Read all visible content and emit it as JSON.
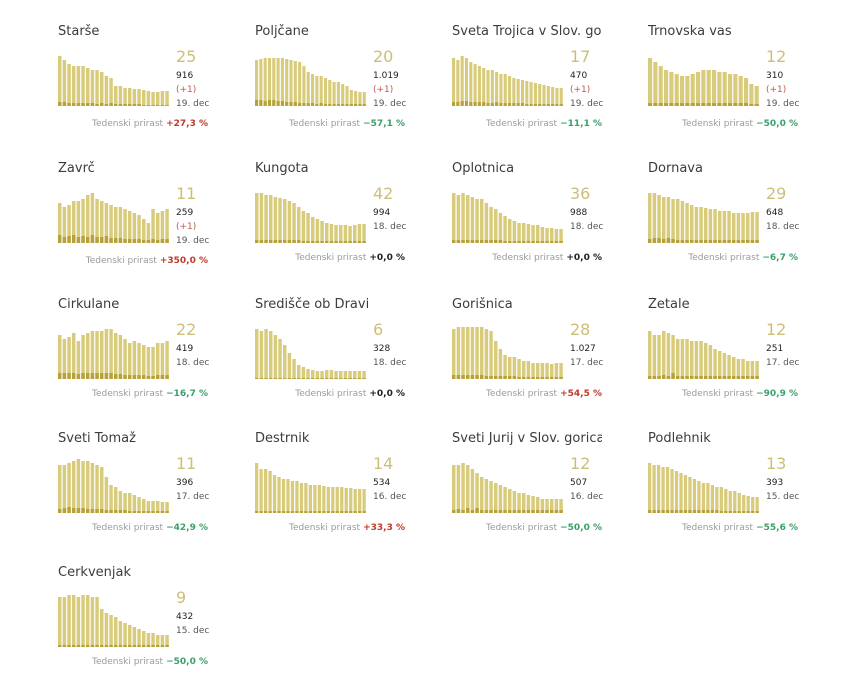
{
  "colors": {
    "bar": "#d8cc7c",
    "bar_dark": "#b6a13a",
    "number": "#cdbf77",
    "positive": "#c0392b",
    "negative": "#3aa06a"
  },
  "weekly_label": "Tedenski prirast",
  "chart_data": [
    {
      "type": "bar",
      "title": "Starše",
      "current": "25",
      "total": "916",
      "delta": "(+1)",
      "date": "19. dec",
      "weekly": "+27,3 %",
      "trend": "pos",
      "values": [
        50,
        46,
        42,
        40,
        40,
        40,
        38,
        36,
        36,
        34,
        30,
        28,
        20,
        20,
        18,
        18,
        17,
        17,
        16,
        15,
        14,
        14,
        15,
        15
      ],
      "highlight": [
        4,
        4,
        3,
        3,
        3,
        3,
        3,
        3,
        2,
        3,
        2,
        3,
        2,
        2,
        2,
        2,
        2,
        2,
        1,
        1,
        1,
        1,
        1,
        1
      ]
    },
    {
      "type": "bar",
      "title": "Poljčane",
      "current": "20",
      "total": "1.019",
      "delta": "(+1)",
      "date": "19. dec",
      "weekly": "−57,1 %",
      "trend": "neg",
      "values": [
        46,
        47,
        48,
        48,
        48,
        48,
        48,
        47,
        46,
        45,
        44,
        40,
        34,
        32,
        30,
        30,
        28,
        26,
        24,
        24,
        22,
        20,
        16,
        15,
        14,
        14
      ],
      "highlight": [
        6,
        6,
        5,
        6,
        6,
        5,
        5,
        4,
        4,
        4,
        3,
        3,
        3,
        3,
        2,
        3,
        2,
        2,
        2,
        2,
        2,
        2,
        2,
        2,
        2,
        2
      ]
    },
    {
      "type": "bar",
      "title": "Sveta Trojica v Slov. goricah",
      "current": "17",
      "total": "470",
      "delta": "(+1)",
      "date": "19. dec",
      "weekly": "−11,1 %",
      "trend": "neg",
      "values": [
        48,
        46,
        50,
        48,
        44,
        42,
        40,
        38,
        36,
        36,
        34,
        32,
        32,
        30,
        28,
        27,
        26,
        25,
        24,
        23,
        22,
        21,
        20,
        19,
        18,
        18
      ],
      "highlight": [
        4,
        4,
        5,
        5,
        4,
        4,
        4,
        4,
        3,
        3,
        4,
        3,
        3,
        3,
        3,
        3,
        3,
        2,
        2,
        2,
        2,
        2,
        2,
        2,
        2,
        2
      ]
    },
    {
      "type": "bar",
      "title": "Trnovska vas",
      "current": "12",
      "total": "310",
      "delta": "(+1)",
      "date": "19. dec",
      "weekly": "−50,0 %",
      "trend": "neg",
      "values": [
        48,
        44,
        40,
        36,
        34,
        32,
        30,
        30,
        32,
        34,
        36,
        36,
        36,
        34,
        34,
        32,
        32,
        30,
        28,
        22,
        20
      ],
      "highlight": [
        3,
        3,
        3,
        3,
        3,
        3,
        3,
        3,
        3,
        3,
        3,
        3,
        3,
        3,
        3,
        3,
        3,
        3,
        3,
        2,
        2
      ]
    },
    {
      "type": "bar",
      "title": "Zavrč",
      "current": "11",
      "total": "259",
      "delta": "(+1)",
      "date": "19. dec",
      "weekly": "+350,0 %",
      "trend": "pos",
      "values": [
        40,
        36,
        38,
        42,
        42,
        44,
        48,
        50,
        44,
        42,
        40,
        38,
        36,
        36,
        34,
        32,
        30,
        28,
        24,
        20,
        34,
        30,
        32,
        34
      ],
      "highlight": [
        8,
        6,
        7,
        8,
        6,
        7,
        6,
        8,
        6,
        6,
        7,
        5,
        5,
        5,
        4,
        4,
        4,
        4,
        3,
        3,
        4,
        3,
        4,
        4
      ]
    },
    {
      "type": "bar",
      "title": "Kungota",
      "current": "42",
      "total": "994",
      "delta": "",
      "date": "18. dec",
      "weekly": "+0,0 %",
      "trend": "zero",
      "values": [
        50,
        50,
        48,
        48,
        46,
        45,
        44,
        42,
        40,
        36,
        32,
        30,
        26,
        24,
        22,
        20,
        19,
        18,
        18,
        18,
        17,
        18,
        19,
        19
      ],
      "highlight": [
        3,
        3,
        3,
        3,
        3,
        3,
        3,
        3,
        3,
        3,
        2,
        2,
        2,
        2,
        2,
        2,
        2,
        2,
        2,
        2,
        2,
        2,
        2,
        2
      ]
    },
    {
      "type": "bar",
      "title": "Oplotnica",
      "current": "36",
      "total": "988",
      "delta": "",
      "date": "18. dec",
      "weekly": "+0,0 %",
      "trend": "zero",
      "values": [
        50,
        48,
        50,
        48,
        46,
        44,
        44,
        40,
        36,
        34,
        30,
        27,
        24,
        22,
        20,
        20,
        19,
        18,
        18,
        16,
        15,
        15,
        14,
        14
      ],
      "highlight": [
        3,
        3,
        3,
        3,
        3,
        3,
        3,
        3,
        3,
        3,
        3,
        2,
        2,
        2,
        2,
        2,
        2,
        2,
        2,
        2,
        2,
        2,
        2,
        2
      ]
    },
    {
      "type": "bar",
      "title": "Dornava",
      "current": "29",
      "total": "648",
      "delta": "",
      "date": "18. dec",
      "weekly": "−6,7 %",
      "trend": "neg",
      "values": [
        50,
        50,
        48,
        46,
        46,
        44,
        44,
        42,
        40,
        38,
        36,
        36,
        35,
        34,
        34,
        32,
        32,
        32,
        30,
        30,
        30,
        30,
        31,
        31
      ],
      "highlight": [
        4,
        5,
        5,
        4,
        5,
        4,
        3,
        3,
        3,
        3,
        3,
        3,
        3,
        3,
        3,
        3,
        3,
        3,
        3,
        3,
        3,
        3,
        3,
        3
      ]
    },
    {
      "type": "bar",
      "title": "Cirkulane",
      "current": "22",
      "total": "419",
      "delta": "",
      "date": "18. dec",
      "weekly": "−16,7 %",
      "trend": "neg",
      "values": [
        44,
        40,
        42,
        46,
        38,
        44,
        46,
        48,
        48,
        48,
        50,
        50,
        46,
        44,
        40,
        36,
        38,
        36,
        34,
        32,
        32,
        36,
        36,
        38
      ],
      "highlight": [
        6,
        6,
        6,
        6,
        5,
        6,
        6,
        6,
        6,
        6,
        6,
        6,
        5,
        5,
        4,
        4,
        4,
        4,
        4,
        3,
        3,
        4,
        4,
        4
      ]
    },
    {
      "type": "bar",
      "title": "Središče ob Dravi",
      "current": "6",
      "total": "328",
      "delta": "",
      "date": "18. dec",
      "weekly": "+0,0 %",
      "trend": "zero",
      "values": [
        50,
        48,
        50,
        48,
        44,
        40,
        34,
        26,
        20,
        14,
        12,
        10,
        9,
        8,
        8,
        9,
        9,
        8,
        8,
        8,
        8,
        8,
        8,
        8
      ],
      "highlight": [
        1,
        1,
        1,
        1,
        1,
        1,
        1,
        1,
        1,
        1,
        1,
        1,
        1,
        1,
        1,
        1,
        1,
        1,
        1,
        1,
        1,
        1,
        1,
        1
      ]
    },
    {
      "type": "bar",
      "title": "Gorišnica",
      "current": "28",
      "total": "1.027",
      "delta": "",
      "date": "17. dec",
      "weekly": "+54,5 %",
      "trend": "pos",
      "values": [
        50,
        52,
        52,
        52,
        52,
        52,
        52,
        50,
        48,
        38,
        30,
        24,
        22,
        22,
        20,
        18,
        18,
        16,
        16,
        16,
        16,
        15,
        16,
        16
      ],
      "highlight": [
        4,
        4,
        4,
        4,
        4,
        4,
        4,
        3,
        3,
        3,
        3,
        3,
        3,
        3,
        2,
        2,
        2,
        2,
        2,
        2,
        2,
        2,
        2,
        2
      ]
    },
    {
      "type": "bar",
      "title": "Žetale",
      "current": "12",
      "total": "251",
      "delta": "",
      "date": "17. dec",
      "weekly": "−90,9 %",
      "trend": "neg",
      "values": [
        48,
        44,
        44,
        48,
        46,
        44,
        40,
        40,
        40,
        38,
        38,
        38,
        36,
        34,
        30,
        28,
        26,
        24,
        22,
        20,
        20,
        18,
        18,
        18
      ],
      "highlight": [
        3,
        3,
        3,
        4,
        3,
        6,
        3,
        3,
        3,
        3,
        3,
        3,
        3,
        3,
        3,
        3,
        3,
        3,
        3,
        3,
        3,
        3,
        3,
        3
      ]
    },
    {
      "type": "bar",
      "title": "Sveti Tomaž",
      "current": "11",
      "total": "396",
      "delta": "",
      "date": "17. dec",
      "weekly": "−42,9 %",
      "trend": "neg",
      "values": [
        48,
        48,
        50,
        52,
        54,
        52,
        52,
        50,
        48,
        46,
        36,
        28,
        26,
        22,
        20,
        20,
        18,
        16,
        14,
        12,
        12,
        12,
        11,
        11
      ],
      "highlight": [
        4,
        5,
        6,
        5,
        5,
        5,
        4,
        4,
        4,
        4,
        3,
        3,
        3,
        3,
        3,
        2,
        2,
        2,
        2,
        2,
        2,
        2,
        2,
        2
      ]
    },
    {
      "type": "bar",
      "title": "Destrnik",
      "current": "14",
      "total": "534",
      "delta": "",
      "date": "16. dec",
      "weekly": "+33,3 %",
      "trend": "pos",
      "values": [
        50,
        44,
        44,
        42,
        38,
        36,
        34,
        34,
        32,
        32,
        30,
        30,
        28,
        28,
        28,
        27,
        26,
        26,
        26,
        26,
        25,
        25,
        24,
        24,
        24
      ],
      "highlight": [
        2,
        2,
        2,
        2,
        2,
        2,
        2,
        2,
        2,
        2,
        2,
        2,
        2,
        2,
        2,
        2,
        2,
        2,
        2,
        2,
        2,
        2,
        2,
        2,
        2
      ]
    },
    {
      "type": "bar",
      "title": "Sveti Jurij v Slov. goricah",
      "current": "12",
      "total": "507",
      "delta": "",
      "date": "16. dec",
      "weekly": "−50,0 %",
      "trend": "neg",
      "values": [
        48,
        48,
        50,
        48,
        44,
        40,
        36,
        34,
        32,
        30,
        28,
        26,
        24,
        22,
        20,
        20,
        18,
        17,
        16,
        14,
        14,
        14,
        14,
        14
      ],
      "highlight": [
        3,
        4,
        3,
        5,
        3,
        5,
        3,
        3,
        3,
        3,
        3,
        3,
        3,
        3,
        3,
        3,
        3,
        3,
        3,
        3,
        3,
        3,
        3,
        3
      ]
    },
    {
      "type": "bar",
      "title": "Podlehnik",
      "current": "13",
      "total": "393",
      "delta": "",
      "date": "15. dec",
      "weekly": "−55,6 %",
      "trend": "neg",
      "values": [
        50,
        48,
        48,
        46,
        46,
        44,
        42,
        40,
        38,
        36,
        34,
        32,
        30,
        30,
        28,
        26,
        26,
        24,
        22,
        22,
        20,
        18,
        17,
        16,
        16
      ],
      "highlight": [
        3,
        3,
        3,
        3,
        3,
        3,
        3,
        3,
        3,
        3,
        3,
        3,
        3,
        3,
        3,
        3,
        2,
        2,
        2,
        2,
        2,
        2,
        2,
        2,
        2
      ]
    },
    {
      "type": "bar",
      "title": "Cerkvenjak",
      "current": "9",
      "total": "432",
      "delta": "",
      "date": "15. dec",
      "weekly": "−50,0 %",
      "trend": "neg",
      "values": [
        50,
        50,
        52,
        52,
        50,
        52,
        52,
        50,
        50,
        38,
        34,
        32,
        30,
        26,
        24,
        22,
        20,
        18,
        16,
        14,
        14,
        12,
        12,
        12
      ],
      "highlight": [
        2,
        2,
        2,
        2,
        2,
        2,
        2,
        2,
        2,
        2,
        2,
        2,
        2,
        2,
        2,
        2,
        2,
        2,
        2,
        2,
        2,
        2,
        2,
        2
      ]
    }
  ]
}
